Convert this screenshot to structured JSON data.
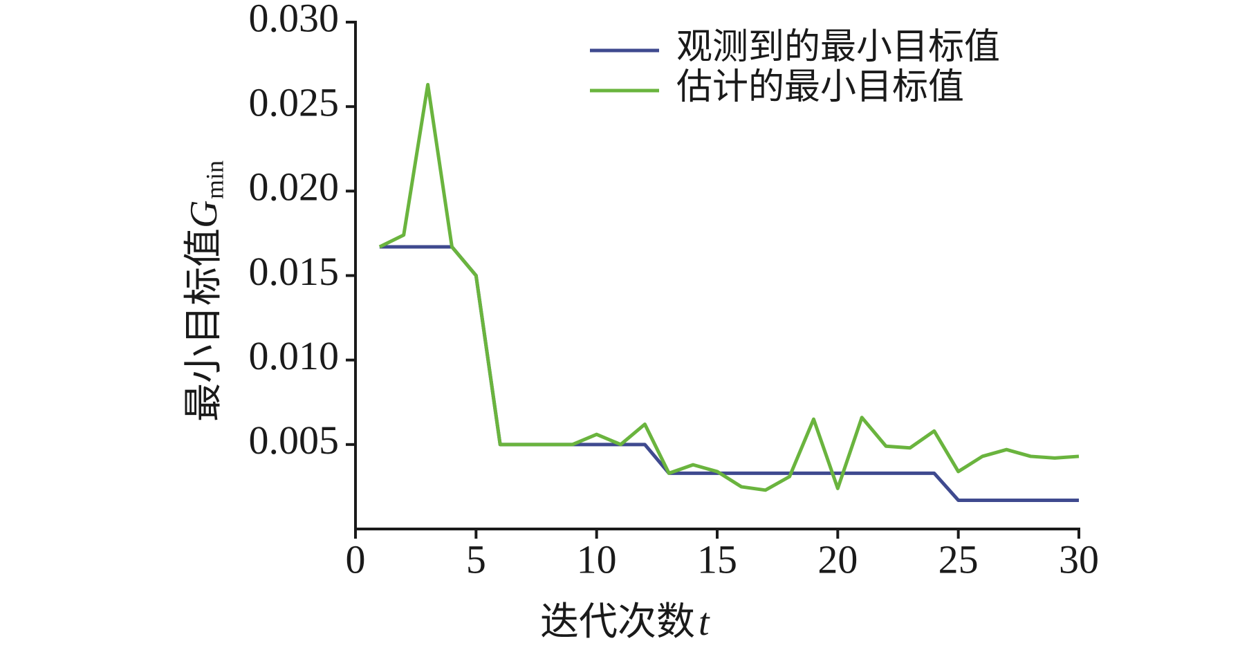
{
  "chart_data": {
    "type": "line",
    "x_label": "迭代次数",
    "x_label_symbol": "t",
    "y_label": "最小目标值",
    "y_label_symbol": "G",
    "y_label_subscript": "min",
    "x": [
      1,
      2,
      3,
      4,
      5,
      6,
      7,
      8,
      9,
      10,
      11,
      12,
      13,
      14,
      15,
      16,
      17,
      18,
      19,
      20,
      21,
      22,
      23,
      24,
      25,
      26,
      27,
      28,
      29,
      30
    ],
    "series": [
      {
        "name": "观测到的最小目标值",
        "color": "#3f4a8f",
        "values": [
          0.0167,
          0.0167,
          0.0167,
          0.0167,
          0.015,
          0.005,
          0.005,
          0.005,
          0.005,
          0.005,
          0.005,
          0.005,
          0.0033,
          0.0033,
          0.0033,
          0.0033,
          0.0033,
          0.0033,
          0.0033,
          0.0033,
          0.0033,
          0.0033,
          0.0033,
          0.0033,
          0.0017,
          0.0017,
          0.0017,
          0.0017,
          0.0017,
          0.0017
        ]
      },
      {
        "name": "估计的最小目标值",
        "color": "#6ab43e",
        "values": [
          0.0167,
          0.0174,
          0.0263,
          0.0167,
          0.015,
          0.005,
          0.005,
          0.005,
          0.005,
          0.0056,
          0.005,
          0.0062,
          0.0033,
          0.0038,
          0.0034,
          0.0025,
          0.0023,
          0.0031,
          0.0065,
          0.0024,
          0.0066,
          0.0049,
          0.0048,
          0.0058,
          0.0034,
          0.0043,
          0.0047,
          0.0043,
          0.0042,
          0.0043
        ]
      }
    ],
    "xlim": [
      0,
      30
    ],
    "xticks": [
      0,
      5,
      10,
      15,
      20,
      25,
      30
    ],
    "ylim": [
      0,
      0.03
    ],
    "yticks": [
      {
        "value": 0.005,
        "label": "0.005"
      },
      {
        "value": 0.01,
        "label": "0.010"
      },
      {
        "value": 0.015,
        "label": "0.015"
      },
      {
        "value": 0.02,
        "label": "0.020"
      },
      {
        "value": 0.025,
        "label": "0.025"
      },
      {
        "value": 0.03,
        "label": "0.030"
      }
    ],
    "grid": false,
    "legend": "upper right"
  }
}
